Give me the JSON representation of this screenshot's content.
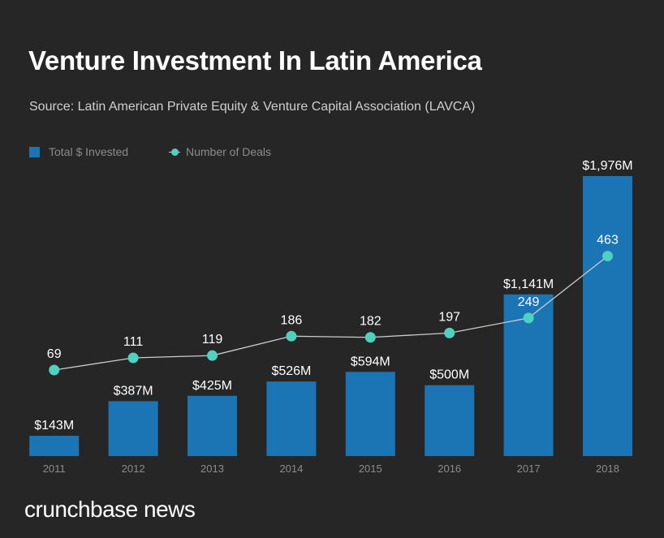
{
  "header": {
    "title": "Venture Investment In Latin America",
    "subtitle": "Source: Latin American Private Equity & Venture Capital Association (LAVCA)"
  },
  "legend": {
    "bar_label": "Total $ Invested",
    "line_label": "Number of Deals"
  },
  "footer": {
    "brand": "crunchbase news"
  },
  "colors": {
    "background": "#262626",
    "bar": "#1b75b5",
    "line": "#cccccc",
    "marker": "#4fd1c0",
    "label": "#ffffff",
    "tick": "#8c8c8c"
  },
  "chart_data": {
    "type": "bar",
    "categories": [
      "2011",
      "2012",
      "2013",
      "2014",
      "2015",
      "2016",
      "2017",
      "2018"
    ],
    "series": [
      {
        "name": "Total $ Invested",
        "type": "bar",
        "values": [
          143,
          387,
          425,
          526,
          594,
          500,
          1141,
          1976
        ],
        "labels": [
          "$143M",
          "$387M",
          "$425M",
          "$526M",
          "$594M",
          "$500M",
          "$1,141M",
          "$1,976M"
        ]
      },
      {
        "name": "Number of Deals",
        "type": "line",
        "values": [
          69,
          111,
          119,
          186,
          182,
          197,
          249,
          463
        ],
        "labels": [
          "69",
          "111",
          "119",
          "186",
          "182",
          "197",
          "249",
          "463"
        ]
      }
    ],
    "grid": false,
    "legend_position": "top-left"
  }
}
